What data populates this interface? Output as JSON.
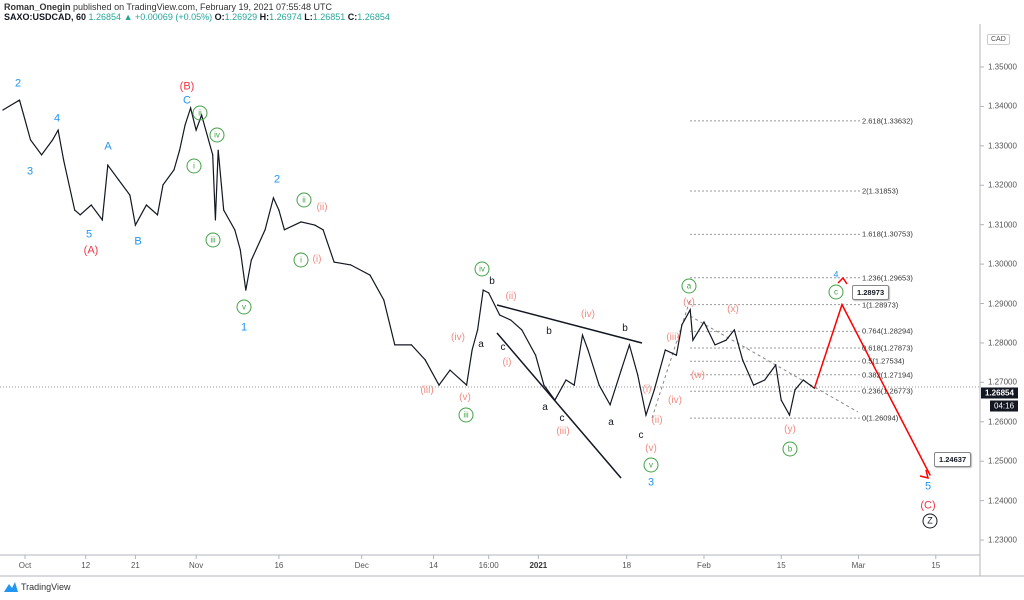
{
  "header": {
    "author": "Roman_Onegin",
    "published": "published on TradingView.com, February 19, 2021 07:55:48 UTC",
    "symbol": "SAXO:USDCAD, 60",
    "last": "1.26854",
    "change": "+0.00069 (+0.05%)",
    "open_label": "O:",
    "open": "1.26929",
    "high_label": "H:",
    "high": "1.26974",
    "low_label": "L:",
    "low": "1.26851",
    "close_label": "C:",
    "close": "1.26854"
  },
  "currency": "CAD",
  "current_price": "1.26854",
  "countdown": "04:16",
  "footer_logo": "TradingView",
  "colors": {
    "price_line": "#131722",
    "projection": "#ff0000",
    "wave_blue": "#2196f3",
    "wave_red": "#f23645",
    "wave_green": "#43a047",
    "wave_pink": "#f28b82"
  },
  "chart_data": {
    "type": "line",
    "title": "",
    "grid": false,
    "ylim": [
      1.225,
      1.357
    ],
    "y_ticks": [
      "1.35000",
      "1.34000",
      "1.33000",
      "1.32000",
      "1.31000",
      "1.30000",
      "1.29000",
      "1.28000",
      "1.27000",
      "1.26000",
      "1.25000",
      "1.24000",
      "1.23000"
    ],
    "x_ticks": [
      {
        "label": "Oct",
        "date": "2020-10-01"
      },
      {
        "label": "12",
        "date": "2020-10-12"
      },
      {
        "label": "21",
        "date": "2020-10-21"
      },
      {
        "label": "Nov",
        "date": "2020-11-01"
      },
      {
        "label": "16",
        "date": "2020-11-16"
      },
      {
        "label": "Dec",
        "date": "2020-12-01"
      },
      {
        "label": "14",
        "date": "2020-12-14"
      },
      {
        "label": "16:00",
        "date": "2020-12-24"
      },
      {
        "label": "2021",
        "date": "2021-01-02"
      },
      {
        "label": "18",
        "date": "2021-01-18"
      },
      {
        "label": "Feb",
        "date": "2021-02-01"
      },
      {
        "label": "15",
        "date": "2021-02-15"
      },
      {
        "label": "Mar",
        "date": "2021-03-01"
      },
      {
        "label": "15",
        "date": "2021-03-15"
      }
    ],
    "series": [
      {
        "points": [
          [
            "2020-09-27",
            1.3391
          ],
          [
            "2020-09-30",
            1.3416
          ],
          [
            "2020-10-01",
            1.3366
          ],
          [
            "2020-10-02",
            1.3315
          ],
          [
            "2020-10-04",
            1.3277
          ],
          [
            "2020-10-06",
            1.3315
          ],
          [
            "2020-10-07",
            1.334
          ],
          [
            "2020-10-08",
            1.3264
          ],
          [
            "2020-10-10",
            1.3137
          ],
          [
            "2020-10-11",
            1.3125
          ],
          [
            "2020-10-13",
            1.315
          ],
          [
            "2020-10-15",
            1.3112
          ],
          [
            "2020-10-16",
            1.3251
          ],
          [
            "2020-10-18",
            1.3213
          ],
          [
            "2020-10-20",
            1.3175
          ],
          [
            "2020-10-21",
            1.3099
          ],
          [
            "2020-10-23",
            1.315
          ],
          [
            "2020-10-25",
            1.3125
          ],
          [
            "2020-10-26",
            1.3201
          ],
          [
            "2020-10-28",
            1.3239
          ],
          [
            "2020-10-29",
            1.3289
          ],
          [
            "2020-10-30",
            1.3353
          ],
          [
            "2020-10-31",
            1.3396
          ],
          [
            "2020-11-01",
            1.334
          ],
          [
            "2020-11-02",
            1.3378
          ],
          [
            "2020-11-04",
            1.3277
          ],
          [
            "2020-11-04T12:00",
            1.3112
          ],
          [
            "2020-11-05",
            1.3289
          ],
          [
            "2020-11-06",
            1.3137
          ],
          [
            "2020-11-08",
            1.3087
          ],
          [
            "2020-11-09",
            1.3036
          ],
          [
            "2020-11-10",
            1.2934
          ],
          [
            "2020-11-11",
            1.301
          ],
          [
            "2020-11-13T12:00",
            1.3087
          ],
          [
            "2020-11-15",
            1.3168
          ],
          [
            "2020-11-16",
            1.3137
          ],
          [
            "2020-11-17",
            1.3087
          ],
          [
            "2020-11-20",
            1.3107
          ],
          [
            "2020-11-22T12:00",
            1.3099
          ],
          [
            "2020-11-24",
            1.3087
          ],
          [
            "2020-11-26",
            1.3005
          ],
          [
            "2020-11-29",
            1.2998
          ],
          [
            "2020-12-02T12:00",
            1.2972
          ],
          [
            "2020-12-05",
            1.2909
          ],
          [
            "2020-12-07",
            1.2795
          ],
          [
            "2020-12-10",
            1.2795
          ],
          [
            "2020-12-12T12:00",
            1.2757
          ],
          [
            "2020-12-15",
            1.2693
          ],
          [
            "2020-12-17",
            1.2731
          ],
          [
            "2020-12-20",
            1.2693
          ],
          [
            "2020-12-21",
            1.2782
          ],
          [
            "2020-12-22",
            1.2833
          ],
          [
            "2020-12-23",
            1.2934
          ],
          [
            "2020-12-24",
            1.2927
          ],
          [
            "2020-12-26",
            1.2871
          ],
          [
            "2020-12-28",
            1.2858
          ],
          [
            "2020-12-30",
            1.2833
          ],
          [
            "2021-01-01T12:00",
            1.2769
          ],
          [
            "2021-01-03",
            1.2693
          ],
          [
            "2021-01-05",
            1.2655
          ],
          [
            "2021-01-07",
            1.2706
          ],
          [
            "2021-01-08T12:00",
            1.2693
          ],
          [
            "2021-01-10",
            1.282
          ],
          [
            "2021-01-11",
            1.2782
          ],
          [
            "2021-01-13",
            1.2693
          ],
          [
            "2021-01-15",
            1.2643
          ],
          [
            "2021-01-17",
            1.2731
          ],
          [
            "2021-01-18T12:00",
            1.2795
          ],
          [
            "2021-01-20",
            1.2719
          ],
          [
            "2021-01-21T12:00",
            1.2617
          ],
          [
            "2021-01-23",
            1.2681
          ],
          [
            "2021-01-25",
            1.2782
          ],
          [
            "2021-01-27",
            1.2769
          ],
          [
            "2021-01-28",
            1.2846
          ],
          [
            "2021-01-29T12:00",
            1.2884
          ],
          [
            "2021-01-30",
            1.2807
          ],
          [
            "2021-02-01",
            1.2853
          ],
          [
            "2021-02-03",
            1.2795
          ],
          [
            "2021-02-05",
            1.2807
          ],
          [
            "2021-02-06T12:00",
            1.2833
          ],
          [
            "2021-02-08",
            1.2757
          ],
          [
            "2021-02-10",
            1.2693
          ],
          [
            "2021-02-12",
            1.2706
          ],
          [
            "2021-02-14",
            1.2744
          ],
          [
            "2021-02-15",
            1.2655
          ],
          [
            "2021-02-16T12:00",
            1.2617
          ],
          [
            "2021-02-17T12:00",
            1.2681
          ],
          [
            "2021-02-19",
            1.2706
          ],
          [
            "2021-02-21",
            1.2685
          ]
        ]
      }
    ],
    "fib_levels": [
      {
        "label": "2.618(1.33632)",
        "price": 1.33632
      },
      {
        "label": "2(1.31853)",
        "price": 1.31853
      },
      {
        "label": "1.618(1.30753)",
        "price": 1.30753
      },
      {
        "label": "1.236(1.29653)",
        "price": 1.29653
      },
      {
        "label": "1(1.28973)",
        "price": 1.28973
      },
      {
        "label": "0.764(1.28294)",
        "price": 1.28294
      },
      {
        "label": "0.618(1.27873)",
        "price": 1.27873
      },
      {
        "label": "0.5(1.27534)",
        "price": 1.27534
      },
      {
        "label": "0.382(1.27194)",
        "price": 1.27194
      },
      {
        "label": "0.236(1.26773)",
        "price": 1.26773
      },
      {
        "label": "0(1.26094)",
        "price": 1.26094
      }
    ],
    "projection": {
      "points": [
        [
          "2021-02-21",
          1.2685
        ],
        [
          "2021-02-26",
          1.28973
        ],
        [
          "2021-03-14",
          1.24637
        ]
      ],
      "targets": [
        "1.28973",
        "1.24637"
      ]
    }
  },
  "wave_labels": [
    {
      "text": "2",
      "kind": "blue"
    },
    {
      "text": "4",
      "kind": "blue"
    },
    {
      "text": "3",
      "kind": "blue"
    },
    {
      "text": "A",
      "kind": "blue"
    },
    {
      "text": "5",
      "kind": "blue"
    },
    {
      "text": "B",
      "kind": "blue"
    },
    {
      "text": "C",
      "kind": "blue"
    },
    {
      "text": "2",
      "kind": "blue"
    },
    {
      "text": "1",
      "kind": "blue"
    },
    {
      "text": "3",
      "kind": "blue"
    },
    {
      "text": "4",
      "kind": "blue"
    },
    {
      "text": "5",
      "kind": "blue"
    },
    {
      "text": "(A)",
      "kind": "red"
    },
    {
      "text": "(B)",
      "kind": "red"
    },
    {
      "text": "(C)",
      "kind": "red"
    },
    {
      "text": "ii",
      "kind": "green"
    },
    {
      "text": "i",
      "kind": "green"
    },
    {
      "text": "iv",
      "kind": "green"
    },
    {
      "text": "iii",
      "kind": "green"
    },
    {
      "text": "v",
      "kind": "green"
    },
    {
      "text": "ii",
      "kind": "green"
    },
    {
      "text": "i",
      "kind": "green"
    },
    {
      "text": "iv",
      "kind": "green"
    },
    {
      "text": "iii",
      "kind": "green"
    },
    {
      "text": "v",
      "kind": "green"
    },
    {
      "text": "a",
      "kind": "green"
    },
    {
      "text": "c",
      "kind": "green"
    },
    {
      "text": "b",
      "kind": "green"
    },
    {
      "text": "(ii)",
      "kind": "pink"
    },
    {
      "text": "(i)",
      "kind": "pink"
    },
    {
      "text": "(iii)",
      "kind": "pink"
    },
    {
      "text": "(iv)",
      "kind": "pink"
    },
    {
      "text": "(v)",
      "kind": "pink"
    },
    {
      "text": "(ii)",
      "kind": "pink"
    },
    {
      "text": "(i)",
      "kind": "pink"
    },
    {
      "text": "(iv)",
      "kind": "pink"
    },
    {
      "text": "(iii)",
      "kind": "pink"
    },
    {
      "text": "(i)",
      "kind": "pink"
    },
    {
      "text": "(ii)",
      "kind": "pink"
    },
    {
      "text": "(v)",
      "kind": "pink"
    },
    {
      "text": "(iii)",
      "kind": "pink"
    },
    {
      "text": "(iv)",
      "kind": "pink"
    },
    {
      "text": "(v)",
      "kind": "pink"
    },
    {
      "text": "(x)",
      "kind": "pink"
    },
    {
      "text": "(w)",
      "kind": "pink"
    },
    {
      "text": "(y)",
      "kind": "pink"
    },
    {
      "text": "b",
      "kind": "black"
    },
    {
      "text": "a",
      "kind": "black"
    },
    {
      "text": "c",
      "kind": "black"
    },
    {
      "text": "b",
      "kind": "black"
    },
    {
      "text": "a",
      "kind": "black"
    },
    {
      "text": "c",
      "kind": "black"
    },
    {
      "text": "a",
      "kind": "black"
    },
    {
      "text": "b",
      "kind": "black"
    },
    {
      "text": "c",
      "kind": "black"
    },
    {
      "text": "Z",
      "kind": "blackc"
    }
  ]
}
